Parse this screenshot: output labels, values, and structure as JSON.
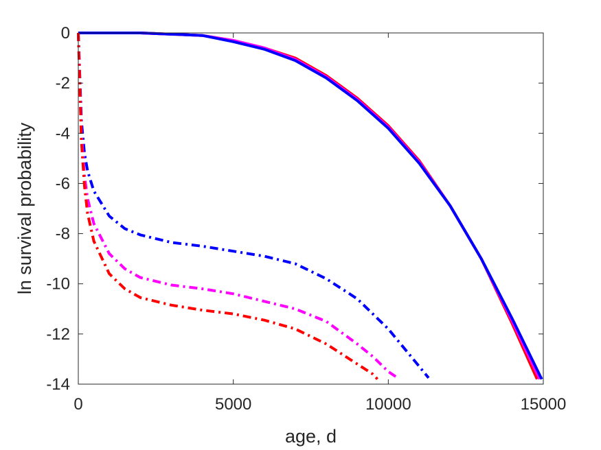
{
  "chart_data": {
    "type": "line",
    "title": "",
    "xlabel": "age, d",
    "ylabel": "ln survival probability",
    "xlim": [
      0,
      15000
    ],
    "ylim": [
      -14,
      0
    ],
    "xticks": [
      0,
      5000,
      10000,
      15000
    ],
    "yticks": [
      0,
      -2,
      -4,
      -6,
      -8,
      -10,
      -12,
      -14
    ],
    "grid": false,
    "legend": "none",
    "series": [
      {
        "color": "#ff0000",
        "style": "solid",
        "x": [
          0,
          2000,
          4000,
          5000,
          6000,
          7000,
          8000,
          9000,
          10000,
          11000,
          12000,
          13000,
          14000,
          14800
        ],
        "y": [
          0,
          0,
          -0.1,
          -0.3,
          -0.6,
          -1.0,
          -1.7,
          -2.6,
          -3.7,
          -5.1,
          -6.9,
          -9.0,
          -11.6,
          -13.8
        ]
      },
      {
        "color": "#ff00ff",
        "style": "solid",
        "x": [
          0,
          2000,
          4000,
          5000,
          6000,
          7000,
          8000,
          9000,
          10000,
          11000,
          12000,
          13000,
          14000,
          14880
        ],
        "y": [
          0,
          0,
          -0.1,
          -0.3,
          -0.6,
          -1.05,
          -1.75,
          -2.65,
          -3.75,
          -5.15,
          -6.9,
          -9.0,
          -11.5,
          -13.8
        ]
      },
      {
        "color": "#0000ff",
        "style": "solid",
        "x": [
          0,
          2000,
          4000,
          5000,
          6000,
          7000,
          8000,
          9000,
          10000,
          11000,
          12000,
          13000,
          14000,
          14950
        ],
        "y": [
          0,
          0,
          -0.1,
          -0.35,
          -0.65,
          -1.1,
          -1.8,
          -2.7,
          -3.8,
          -5.2,
          -6.9,
          -9.0,
          -11.4,
          -13.8
        ]
      },
      {
        "color": "#0000ff",
        "style": "dashdot",
        "x": [
          0,
          100,
          200,
          300,
          500,
          1000,
          1500,
          2000,
          3000,
          4000,
          5000,
          6000,
          7000,
          8000,
          9000,
          10000,
          11000,
          11300
        ],
        "y": [
          0,
          -3.5,
          -4.8,
          -5.5,
          -6.3,
          -7.3,
          -7.8,
          -8.05,
          -8.35,
          -8.5,
          -8.7,
          -8.9,
          -9.2,
          -9.8,
          -10.6,
          -11.8,
          -13.3,
          -13.75
        ]
      },
      {
        "color": "#ff00ff",
        "style": "dashdot",
        "x": [
          0,
          100,
          200,
          300,
          500,
          1000,
          1500,
          2000,
          3000,
          4000,
          5000,
          6000,
          7000,
          8000,
          9000,
          9500,
          10000,
          10300
        ],
        "y": [
          0,
          -4.0,
          -5.7,
          -6.6,
          -7.6,
          -8.8,
          -9.4,
          -9.75,
          -10.05,
          -10.2,
          -10.4,
          -10.7,
          -11.0,
          -11.5,
          -12.4,
          -12.9,
          -13.5,
          -13.75
        ]
      },
      {
        "color": "#ff0000",
        "style": "dashdot",
        "x": [
          0,
          100,
          200,
          300,
          500,
          1000,
          1500,
          2000,
          3000,
          4000,
          5000,
          6000,
          7000,
          8000,
          8500,
          9000,
          9500,
          9650
        ],
        "y": [
          0,
          -4.3,
          -6.1,
          -7.2,
          -8.3,
          -9.6,
          -10.2,
          -10.55,
          -10.85,
          -11.05,
          -11.2,
          -11.45,
          -11.8,
          -12.4,
          -12.8,
          -13.2,
          -13.6,
          -13.8
        ]
      }
    ]
  }
}
